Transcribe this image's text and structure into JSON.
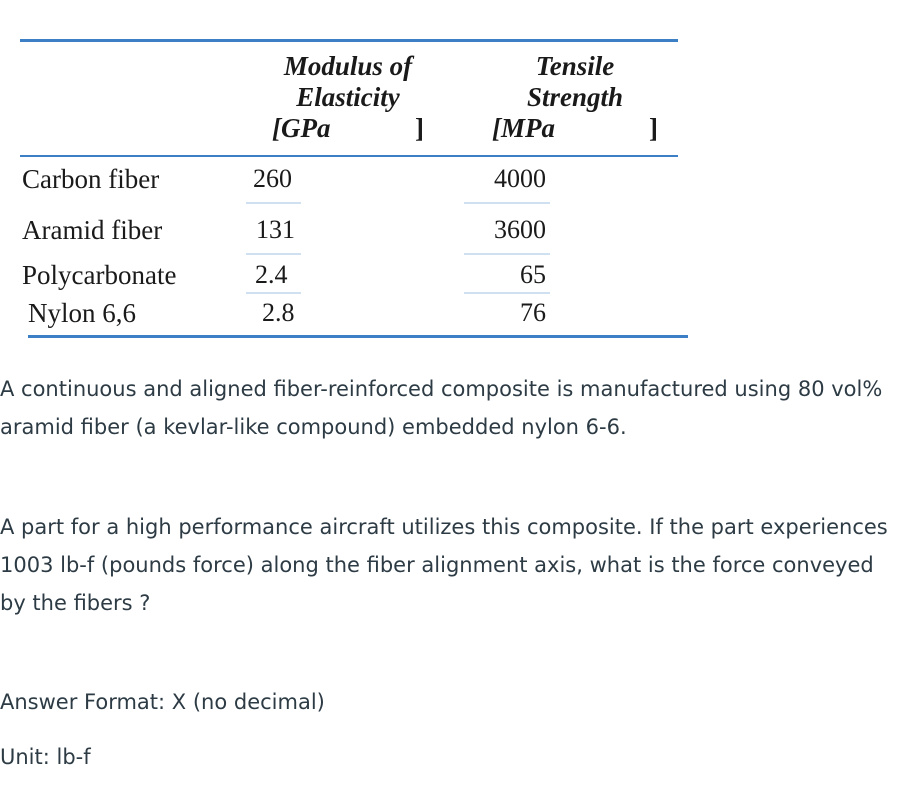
{
  "table": {
    "headers": {
      "modulus": {
        "line1": "Modulus of",
        "line2": "Elasticity",
        "unit": "[GPa",
        "unit_close": "]"
      },
      "tensile": {
        "line1": "Tensile",
        "line2": "Strength",
        "unit": "[MPa",
        "unit_close": "]"
      }
    },
    "rows": [
      {
        "material": "Carbon fiber",
        "modulus": "260",
        "tensile": "4000"
      },
      {
        "material": "Aramid fiber",
        "modulus": "131",
        "tensile": "3600"
      },
      {
        "material": "Polycarbonate",
        "modulus": "2.4",
        "tensile": "65"
      },
      {
        "material": "Nylon 6,6",
        "modulus": "2.8",
        "tensile": "76"
      }
    ],
    "rule_color": "#3d7fc4",
    "underline_color": "#cfe0f1"
  },
  "question": {
    "paragraph1": "A continuous and aligned fiber-reinforced composite is manufactured using 80 vol% aramid fiber (a kevlar-like compound) embedded nylon 6-6.",
    "paragraph2": "A part for a high performance aircraft utilizes this composite. If the part experiences 1003 lb-f (pounds force) along the fiber alignment axis, what is the force conveyed by the fibers ?",
    "answer_format": "Answer Format: X (no decimal)",
    "unit": "Unit: lb-f"
  }
}
